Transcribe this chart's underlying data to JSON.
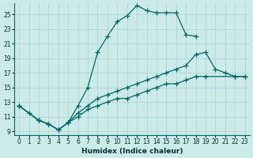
{
  "xlabel": "Humidex (Indice chaleur)",
  "ylabel": "",
  "background_color": "#cceae8",
  "grid_color": "#b0d8d4",
  "line_color": "#006868",
  "xlim": [
    -0.5,
    23.5
  ],
  "ylim": [
    8.5,
    26.5
  ],
  "xticks": [
    0,
    1,
    2,
    3,
    4,
    5,
    6,
    7,
    8,
    9,
    10,
    11,
    12,
    13,
    14,
    15,
    16,
    17,
    18,
    19,
    20,
    21,
    22,
    23
  ],
  "yticks": [
    9,
    11,
    13,
    15,
    17,
    19,
    21,
    23,
    25
  ],
  "line1_x": [
    0,
    1,
    2,
    3,
    4,
    5,
    6,
    7,
    8,
    9,
    10,
    11,
    12,
    13,
    14,
    15,
    16,
    17,
    18
  ],
  "line1_y": [
    12.5,
    11.5,
    10.5,
    10.0,
    9.2,
    10.2,
    12.5,
    15.0,
    19.8,
    22.0,
    24.0,
    24.8,
    26.2,
    25.5,
    25.2,
    25.2,
    25.2,
    22.2,
    22.0
  ],
  "line2_x": [
    0,
    2,
    3,
    4,
    5,
    6,
    7,
    8,
    9,
    10,
    11,
    12,
    13,
    14,
    15,
    16,
    17,
    18,
    19,
    20,
    21,
    22,
    23
  ],
  "line2_y": [
    12.5,
    10.5,
    10.0,
    9.2,
    10.2,
    11.5,
    12.5,
    13.5,
    14.0,
    14.5,
    15.0,
    15.5,
    16.0,
    16.5,
    17.0,
    17.5,
    18.0,
    19.5,
    19.8,
    17.5,
    17.0,
    16.5,
    16.5
  ],
  "line3_x": [
    0,
    2,
    3,
    4,
    5,
    6,
    7,
    8,
    9,
    10,
    11,
    12,
    13,
    14,
    15,
    16,
    17,
    18,
    19,
    22,
    23
  ],
  "line3_y": [
    12.5,
    10.5,
    10.0,
    9.2,
    10.2,
    11.0,
    12.0,
    12.5,
    13.0,
    13.5,
    13.5,
    14.0,
    14.5,
    15.0,
    15.5,
    15.5,
    16.0,
    16.5,
    16.5,
    16.5,
    16.5
  ]
}
